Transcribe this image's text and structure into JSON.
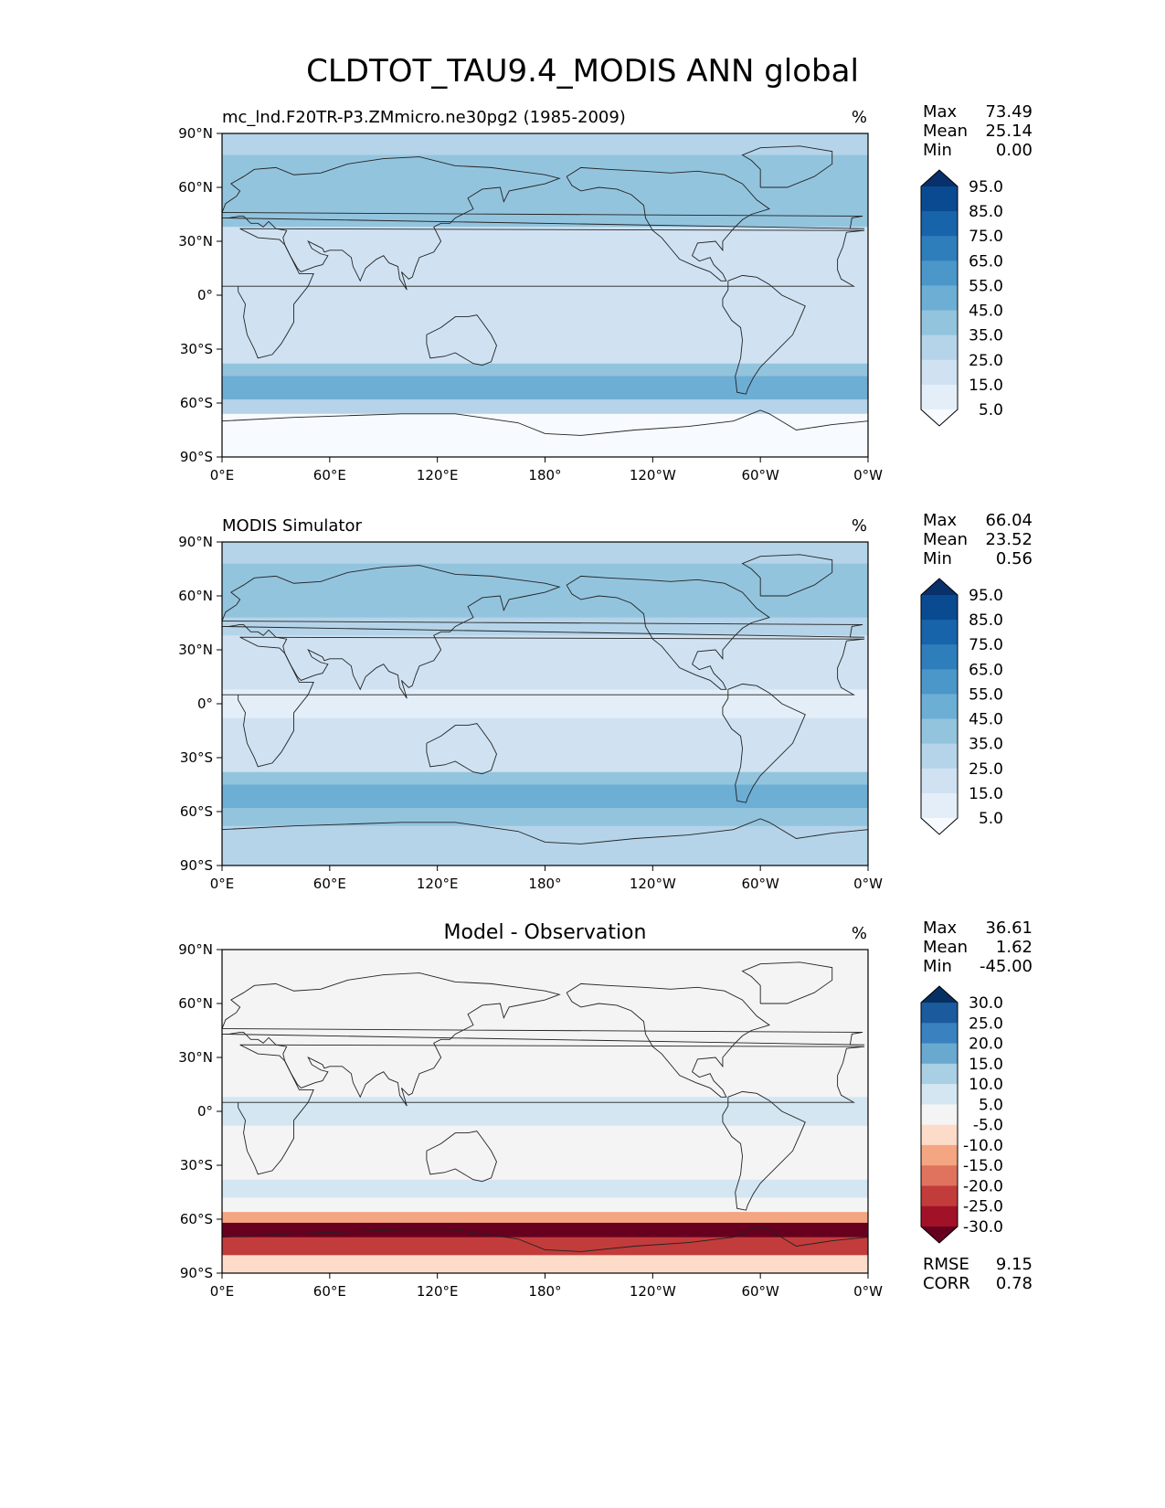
{
  "figure_title": "CLDTOT_TAU9.4_MODIS ANN global",
  "chart_data": [
    {
      "type": "heatmap",
      "title": "mc_lnd.F20TR-P3.ZMmicro.ne30pg2 (1985-2009)",
      "units": "%",
      "xticks": [
        "0°E",
        "60°E",
        "120°E",
        "180°",
        "120°W",
        "60°W",
        "0°W"
      ],
      "yticks": [
        "90°N",
        "60°N",
        "30°N",
        "0°",
        "30°S",
        "60°S",
        "90°S"
      ],
      "xlim": [
        0,
        360
      ],
      "ylim": [
        -90,
        90
      ],
      "stats": [
        {
          "label": "Max",
          "value": "73.49"
        },
        {
          "label": "Mean",
          "value": "25.14"
        },
        {
          "label": "Min",
          "value": "0.00"
        }
      ],
      "colorbar": {
        "labels": [
          "95.0",
          "85.0",
          "75.0",
          "65.0",
          "55.0",
          "45.0",
          "35.0",
          "25.0",
          "15.0",
          "5.0"
        ],
        "colors": [
          "#08306b",
          "#0a4a90",
          "#1764ab",
          "#2f7ebc",
          "#4b97c9",
          "#6daed5",
          "#93c4de",
          "#b5d4e9",
          "#d0e2f2",
          "#e3eef8",
          "#f7fbff"
        ]
      },
      "bands": [
        {
          "lat": [
            90,
            78
          ],
          "value": 32
        },
        {
          "lat": [
            78,
            62
          ],
          "value": 38
        },
        {
          "lat": [
            62,
            48
          ],
          "value": 44
        },
        {
          "lat": [
            48,
            38
          ],
          "value": 36
        },
        {
          "lat": [
            38,
            22
          ],
          "value": 22
        },
        {
          "lat": [
            22,
            8
          ],
          "value": 18
        },
        {
          "lat": [
            8,
            -8
          ],
          "value": 24
        },
        {
          "lat": [
            -8,
            -22
          ],
          "value": 18
        },
        {
          "lat": [
            -22,
            -38
          ],
          "value": 24
        },
        {
          "lat": [
            -38,
            -45
          ],
          "value": 40
        },
        {
          "lat": [
            -45,
            -58
          ],
          "value": 50
        },
        {
          "lat": [
            -58,
            -66
          ],
          "value": 34
        },
        {
          "lat": [
            -66,
            -90
          ],
          "value": 4
        }
      ]
    },
    {
      "type": "heatmap",
      "title": "MODIS Simulator",
      "units": "%",
      "xticks": [
        "0°E",
        "60°E",
        "120°E",
        "180°",
        "120°W",
        "60°W",
        "0°W"
      ],
      "yticks": [
        "90°N",
        "60°N",
        "30°N",
        "0°",
        "30°S",
        "60°S",
        "90°S"
      ],
      "xlim": [
        0,
        360
      ],
      "ylim": [
        -90,
        90
      ],
      "stats": [
        {
          "label": "Max",
          "value": "66.04"
        },
        {
          "label": "Mean",
          "value": "23.52"
        },
        {
          "label": "Min",
          "value": "0.56"
        }
      ],
      "colorbar": {
        "labels": [
          "95.0",
          "85.0",
          "75.0",
          "65.0",
          "55.0",
          "45.0",
          "35.0",
          "25.0",
          "15.0",
          "5.0"
        ],
        "colors": [
          "#08306b",
          "#0a4a90",
          "#1764ab",
          "#2f7ebc",
          "#4b97c9",
          "#6daed5",
          "#93c4de",
          "#b5d4e9",
          "#d0e2f2",
          "#e3eef8",
          "#f7fbff"
        ]
      },
      "bands": [
        {
          "lat": [
            90,
            78
          ],
          "value": 34
        },
        {
          "lat": [
            78,
            62
          ],
          "value": 36
        },
        {
          "lat": [
            62,
            48
          ],
          "value": 40
        },
        {
          "lat": [
            48,
            38
          ],
          "value": 34
        },
        {
          "lat": [
            38,
            22
          ],
          "value": 22
        },
        {
          "lat": [
            22,
            8
          ],
          "value": 18
        },
        {
          "lat": [
            8,
            -8
          ],
          "value": 14
        },
        {
          "lat": [
            -8,
            -22
          ],
          "value": 18
        },
        {
          "lat": [
            -22,
            -38
          ],
          "value": 24
        },
        {
          "lat": [
            -38,
            -45
          ],
          "value": 36
        },
        {
          "lat": [
            -45,
            -58
          ],
          "value": 48
        },
        {
          "lat": [
            -58,
            -68
          ],
          "value": 40
        },
        {
          "lat": [
            -68,
            -90
          ],
          "value": 26
        }
      ]
    },
    {
      "type": "heatmap",
      "title": "Model - Observation",
      "units": "%",
      "xticks": [
        "0°E",
        "60°E",
        "120°E",
        "180°",
        "120°W",
        "60°W",
        "0°W"
      ],
      "yticks": [
        "90°N",
        "60°N",
        "30°N",
        "0°",
        "30°S",
        "60°S",
        "90°S"
      ],
      "xlim": [
        0,
        360
      ],
      "ylim": [
        -90,
        90
      ],
      "stats": [
        {
          "label": "Max",
          "value": "36.61"
        },
        {
          "label": "Mean",
          "value": "1.62"
        },
        {
          "label": "Min",
          "value": "-45.00"
        }
      ],
      "colorbar": {
        "labels": [
          "30.0",
          "25.0",
          "20.0",
          "15.0",
          "10.0",
          "5.0",
          "-5.0",
          "-10.0",
          "-15.0",
          "-20.0",
          "-25.0",
          "-30.0"
        ],
        "colors": [
          "#053061",
          "#1b5a9c",
          "#3a82bf",
          "#69a9d0",
          "#a9cfe4",
          "#d4e6f1",
          "#f4f4f4",
          "#fcdcc8",
          "#f4a582",
          "#e0735e",
          "#c23c3c",
          "#a11228",
          "#67001f"
        ]
      },
      "footer_stats": [
        {
          "label": "RMSE",
          "value": "9.15"
        },
        {
          "label": "CORR",
          "value": "0.78"
        }
      ],
      "bands": [
        {
          "lat": [
            90,
            78
          ],
          "value": 0
        },
        {
          "lat": [
            78,
            62
          ],
          "value": -3
        },
        {
          "lat": [
            62,
            48
          ],
          "value": 0
        },
        {
          "lat": [
            48,
            22
          ],
          "value": 2
        },
        {
          "lat": [
            22,
            8
          ],
          "value": 1
        },
        {
          "lat": [
            8,
            -8
          ],
          "value": 7
        },
        {
          "lat": [
            -8,
            -22
          ],
          "value": 2
        },
        {
          "lat": [
            -22,
            -38
          ],
          "value": 1
        },
        {
          "lat": [
            -38,
            -48
          ],
          "value": 8
        },
        {
          "lat": [
            -48,
            -56
          ],
          "value": 2
        },
        {
          "lat": [
            -56,
            -62
          ],
          "value": -12
        },
        {
          "lat": [
            -62,
            -70
          ],
          "value": -32
        },
        {
          "lat": [
            -70,
            -80
          ],
          "value": -22
        },
        {
          "lat": [
            -80,
            -90
          ],
          "value": -8
        }
      ]
    }
  ]
}
